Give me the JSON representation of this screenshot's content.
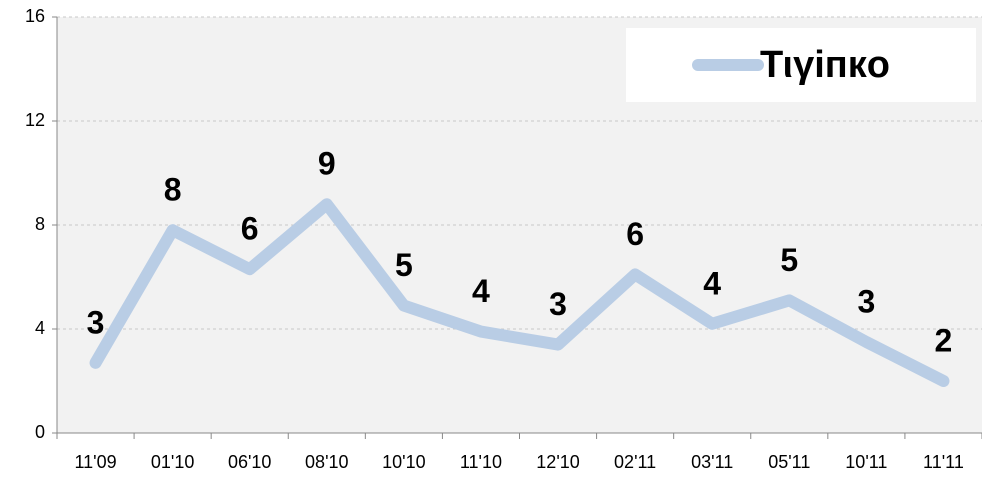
{
  "chart_data": {
    "type": "line",
    "categories": [
      "11'09",
      "01'10",
      "06'10",
      "08'10",
      "10'10",
      "11'10",
      "12'10",
      "02'11",
      "03'11",
      "05'11",
      "10'11",
      "11'11"
    ],
    "series": [
      {
        "name": "Τιγіпкο",
        "color": "#b9cde5",
        "values": [
          2.7,
          7.8,
          6.3,
          8.8,
          4.9,
          3.9,
          3.4,
          6.1,
          4.2,
          5.1,
          3.5,
          2.0
        ],
        "value_labels": [
          "3",
          "8",
          "6",
          "9",
          "5",
          "4",
          "3",
          "6",
          "4",
          "5",
          "3",
          "2"
        ]
      }
    ],
    "ylim": [
      0,
      16
    ],
    "yticks": [
      0,
      4,
      8,
      12,
      16
    ],
    "grid": true,
    "legend": "top-right"
  }
}
